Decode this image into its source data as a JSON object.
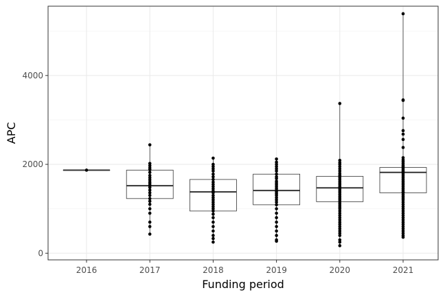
{
  "chart_data": {
    "type": "boxplot",
    "xlabel": "Funding period",
    "ylabel": "APC",
    "categories": [
      "2016",
      "2017",
      "2018",
      "2019",
      "2020",
      "2021"
    ],
    "ylim": [
      -150,
      5560
    ],
    "y_ticks": [
      0,
      2000,
      4000
    ],
    "grid": true,
    "boxes": [
      {
        "category": "2016",
        "min": 1870,
        "q1": 1870,
        "median": 1870,
        "q3": 1870,
        "max": 1870,
        "points": [
          1870
        ]
      },
      {
        "category": "2017",
        "min": 430,
        "q1": 1230,
        "median": 1520,
        "q3": 1870,
        "max": 2440,
        "points": [
          2440,
          2020,
          1970,
          1920,
          1880,
          1820,
          1750,
          1700,
          1650,
          1600,
          1560,
          1520,
          1480,
          1420,
          1360,
          1300,
          1230,
          1170,
          1100,
          1000,
          900,
          700,
          600,
          430
        ]
      },
      {
        "category": "2018",
        "min": 250,
        "q1": 950,
        "median": 1380,
        "q3": 1660,
        "max": 2140,
        "points": [
          2140,
          2000,
          1950,
          1900,
          1850,
          1780,
          1720,
          1660,
          1600,
          1550,
          1500,
          1450,
          1400,
          1360,
          1300,
          1250,
          1200,
          1150,
          1100,
          1050,
          1000,
          950,
          880,
          800,
          700,
          600,
          500,
          400,
          330,
          250
        ]
      },
      {
        "category": "2019",
        "min": 270,
        "q1": 1090,
        "median": 1410,
        "q3": 1780,
        "max": 2120,
        "points": [
          2120,
          2050,
          2000,
          1950,
          1900,
          1850,
          1780,
          1720,
          1680,
          1620,
          1580,
          1540,
          1500,
          1460,
          1420,
          1380,
          1340,
          1300,
          1250,
          1200,
          1150,
          1090,
          1000,
          900,
          800,
          700,
          600,
          500,
          400,
          300,
          270
        ]
      },
      {
        "category": "2020",
        "min": 170,
        "q1": 1160,
        "median": 1470,
        "q3": 1730,
        "max": 3370,
        "points": [
          3370,
          2090,
          2040,
          2000,
          1950,
          1900,
          1850,
          1800,
          1760,
          1730,
          1700,
          1660,
          1620,
          1580,
          1540,
          1500,
          1470,
          1440,
          1400,
          1360,
          1320,
          1280,
          1240,
          1200,
          1160,
          1120,
          1080,
          1040,
          1000,
          950,
          900,
          850,
          800,
          750,
          700,
          650,
          600,
          550,
          500,
          450,
          400,
          300,
          250,
          170
        ]
      },
      {
        "category": "2021",
        "min": 360,
        "q1": 1360,
        "median": 1820,
        "q3": 1930,
        "max": 5390,
        "points": [
          5390,
          3450,
          3440,
          3040,
          2760,
          2680,
          2560,
          2380,
          2150,
          2100,
          2060,
          2020,
          1980,
          1950,
          1930,
          1900,
          1870,
          1840,
          1820,
          1780,
          1740,
          1700,
          1660,
          1620,
          1580,
          1540,
          1500,
          1460,
          1420,
          1380,
          1360,
          1320,
          1280,
          1240,
          1200,
          1150,
          1100,
          1050,
          1000,
          950,
          900,
          850,
          800,
          750,
          700,
          650,
          600,
          550,
          500,
          450,
          400,
          360
        ]
      }
    ]
  }
}
